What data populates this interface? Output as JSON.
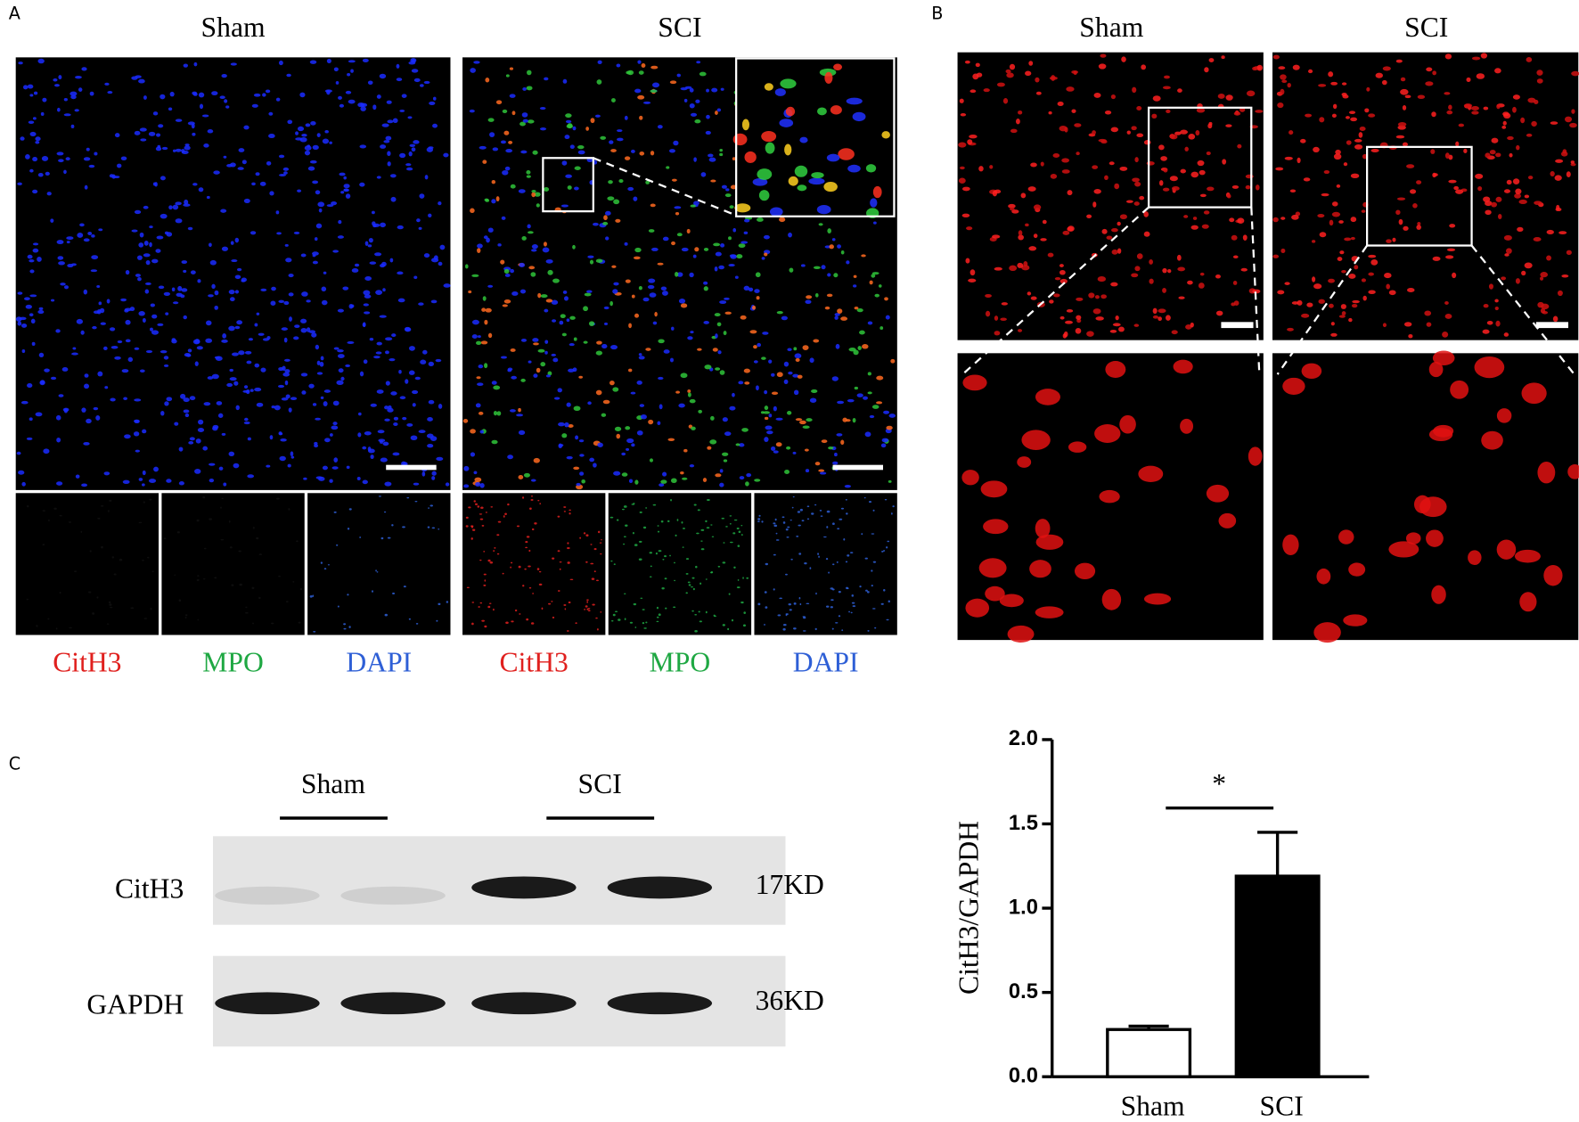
{
  "panel_a": {
    "label": "A",
    "groups": [
      {
        "title": "Sham",
        "channels": [
          "CitH3",
          "MPO",
          "DAPI"
        ]
      },
      {
        "title": "SCI",
        "channels": [
          "CitH3",
          "MPO",
          "DAPI"
        ]
      }
    ]
  },
  "panel_b": {
    "label": "B",
    "groups": [
      "Sham",
      "SCI"
    ]
  },
  "panel_c": {
    "label": "C",
    "lanes": [
      "Sham",
      "SCI"
    ],
    "bands": [
      {
        "name": "CitH3",
        "size": "17KD"
      },
      {
        "name": "GAPDH",
        "size": "36KD"
      }
    ]
  },
  "chart_data": {
    "type": "bar",
    "ylabel": "CitH3/GAPDH",
    "categories": [
      "Sham",
      "SCI"
    ],
    "values": [
      0.28,
      1.19
    ],
    "errors": [
      0.02,
      0.26
    ],
    "colors": [
      "#ffffff",
      "#000000"
    ],
    "annotation": "*",
    "ylim": [
      0,
      2
    ],
    "yticks": [
      {
        "value": 0,
        "label": "0.0"
      },
      0.5,
      {
        "value": 1,
        "label": "1.0"
      },
      1.5,
      {
        "value": 2,
        "label": "2.0"
      }
    ]
  }
}
